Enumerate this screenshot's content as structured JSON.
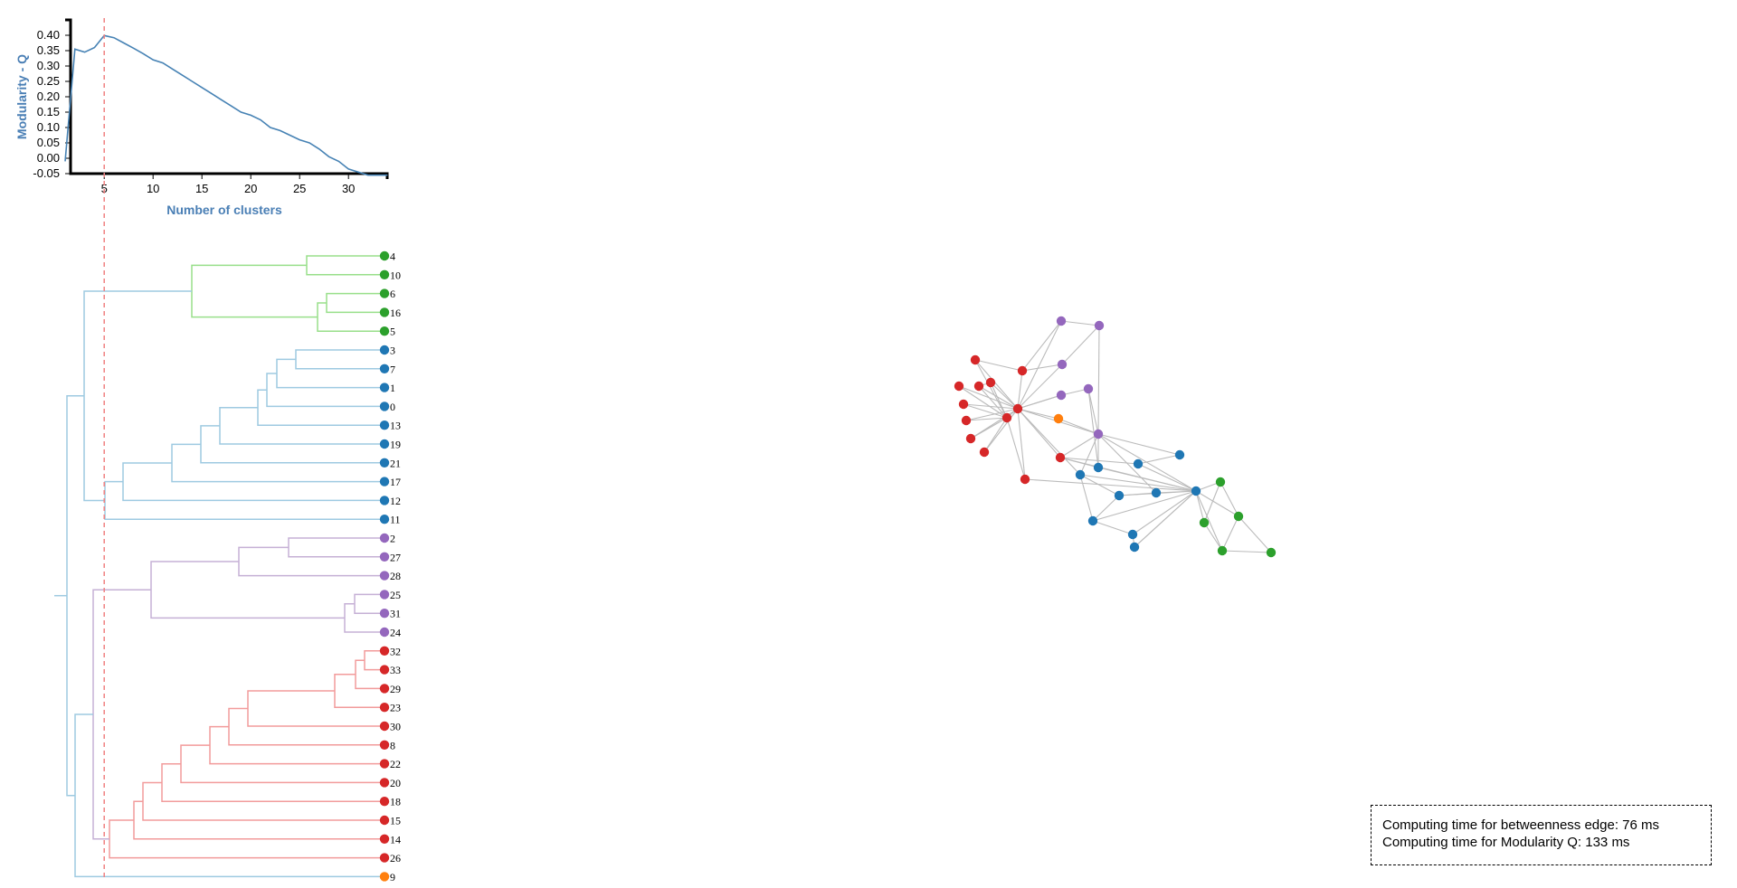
{
  "modularity_chart": {
    "ylabel": "Modularity - Q",
    "xlabel": "Number of clusters",
    "y_ticks": [
      "-0.05",
      "0.00",
      "0.05",
      "0.10",
      "0.15",
      "0.20",
      "0.25",
      "0.30",
      "0.35",
      "0.40"
    ],
    "x_ticks": [
      "5",
      "10",
      "15",
      "20",
      "25",
      "30"
    ],
    "selected_clusters": 5
  },
  "chart_data": {
    "type": "line",
    "xlabel": "Number of clusters",
    "ylabel": "Modularity - Q",
    "xlim": [
      1,
      34
    ],
    "ylim": [
      -0.05,
      0.42
    ],
    "series": [
      {
        "x": [
          1,
          2,
          3,
          4,
          5,
          6,
          7,
          8,
          9,
          10,
          11,
          12,
          13,
          14,
          15,
          16,
          17,
          18,
          19,
          20,
          21,
          22,
          23,
          24,
          25,
          26,
          27,
          28,
          29,
          30,
          31,
          32,
          33,
          34
        ],
        "values": [
          -0.01,
          0.355,
          0.345,
          0.36,
          0.399,
          0.392,
          0.375,
          0.358,
          0.34,
          0.32,
          0.31,
          0.29,
          0.27,
          0.25,
          0.23,
          0.21,
          0.19,
          0.17,
          0.15,
          0.14,
          0.125,
          0.1,
          0.09,
          0.075,
          0.06,
          0.05,
          0.03,
          0.005,
          -0.01,
          -0.035,
          -0.045,
          -0.06,
          -0.055,
          -0.06
        ]
      }
    ]
  },
  "dendrogram": {
    "leaves": [
      {
        "label": "4",
        "color": "#2ca02c"
      },
      {
        "label": "10",
        "color": "#2ca02c"
      },
      {
        "label": "6",
        "color": "#2ca02c"
      },
      {
        "label": "16",
        "color": "#2ca02c"
      },
      {
        "label": "5",
        "color": "#2ca02c"
      },
      {
        "label": "3",
        "color": "#1f77b4"
      },
      {
        "label": "7",
        "color": "#1f77b4"
      },
      {
        "label": "1",
        "color": "#1f77b4"
      },
      {
        "label": "0",
        "color": "#1f77b4"
      },
      {
        "label": "13",
        "color": "#1f77b4"
      },
      {
        "label": "19",
        "color": "#1f77b4"
      },
      {
        "label": "21",
        "color": "#1f77b4"
      },
      {
        "label": "17",
        "color": "#1f77b4"
      },
      {
        "label": "12",
        "color": "#1f77b4"
      },
      {
        "label": "11",
        "color": "#1f77b4"
      },
      {
        "label": "2",
        "color": "#9467bd"
      },
      {
        "label": "27",
        "color": "#9467bd"
      },
      {
        "label": "28",
        "color": "#9467bd"
      },
      {
        "label": "25",
        "color": "#9467bd"
      },
      {
        "label": "31",
        "color": "#9467bd"
      },
      {
        "label": "24",
        "color": "#9467bd"
      },
      {
        "label": "32",
        "color": "#d62728"
      },
      {
        "label": "33",
        "color": "#d62728"
      },
      {
        "label": "29",
        "color": "#d62728"
      },
      {
        "label": "23",
        "color": "#d62728"
      },
      {
        "label": "30",
        "color": "#d62728"
      },
      {
        "label": "8",
        "color": "#d62728"
      },
      {
        "label": "22",
        "color": "#d62728"
      },
      {
        "label": "20",
        "color": "#d62728"
      },
      {
        "label": "18",
        "color": "#d62728"
      },
      {
        "label": "15",
        "color": "#d62728"
      },
      {
        "label": "14",
        "color": "#d62728"
      },
      {
        "label": "26",
        "color": "#d62728"
      },
      {
        "label": "9",
        "color": "#ff7f0e"
      }
    ]
  },
  "graph": {
    "node_colors": {
      "green": "#2ca02c",
      "blue": "#1f77b4",
      "purple": "#9467bd",
      "red": "#d62728",
      "orange": "#ff7f0e"
    },
    "edge_color": "#bbbbbb"
  },
  "info": {
    "line1": "Computing time for betweenness edge: 76 ms",
    "line2": "Computing time for Modularity Q: 133 ms"
  }
}
